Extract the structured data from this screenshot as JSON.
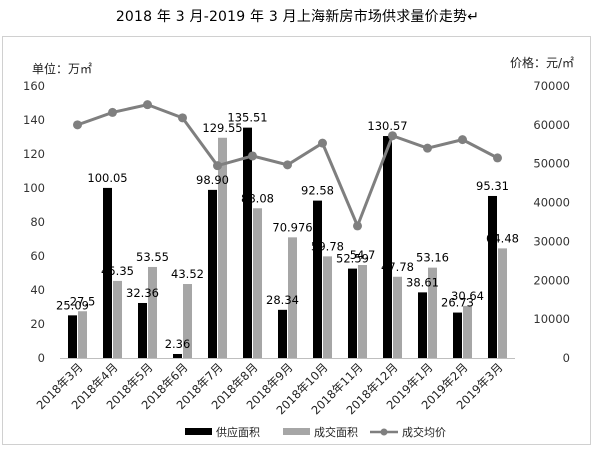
{
  "title": "2018 年 3 月-2019 年 3 月上海新房市场供求量价走势↵",
  "left_unit": "单位：万㎡",
  "right_unit": "价格：元/㎡",
  "legend": [
    "供应面积",
    "成交面积",
    "成交均价"
  ],
  "colors": {
    "supply": "#000000",
    "deal": "#a6a6a6",
    "price": "#7f7f7f"
  },
  "chart_data": {
    "type": "bar",
    "categories": [
      "2018年3月",
      "2018年4月",
      "2018年5月",
      "2018年6月",
      "2018年7月",
      "2018年8月",
      "2018年9月",
      "2018年10月",
      "2018年11月",
      "2018年12月",
      "2019年1月",
      "2019年2月",
      "2019年3月"
    ],
    "series": [
      {
        "name": "供应面积",
        "type": "bar",
        "axis": "left",
        "values": [
          25.09,
          100.05,
          32.36,
          2.36,
          98.9,
          135.51,
          28.34,
          92.58,
          52.59,
          130.57,
          38.61,
          26.73,
          95.31
        ],
        "labels": [
          "25.09",
          "100.05",
          "32.36",
          "2.36",
          "98.90",
          "135.51",
          "28.34",
          "92.58",
          "52.59",
          "130.57",
          "38.61",
          "26.73",
          "95.31"
        ]
      },
      {
        "name": "成交面积",
        "type": "bar",
        "axis": "left",
        "values": [
          27.5,
          45.35,
          53.55,
          43.52,
          129.55,
          88.08,
          70.976,
          59.78,
          54.7,
          47.78,
          53.16,
          30.64,
          64.48
        ],
        "labels": [
          "27.5",
          "45.35",
          "53.55",
          "43.52",
          "129.55",
          "88.08",
          "70.976",
          "59.78",
          "54.7",
          "47.78",
          "53.16",
          "30.64",
          "64.48"
        ]
      },
      {
        "name": "成交均价",
        "type": "line",
        "axis": "right",
        "values": [
          60000,
          63200,
          65200,
          61800,
          49500,
          52000,
          49700,
          55300,
          34000,
          57200,
          54000,
          56200,
          51500
        ]
      }
    ],
    "ylim_left": [
      0,
      160
    ],
    "yticks_left": [
      0,
      20,
      40,
      60,
      80,
      100,
      120,
      140,
      160
    ],
    "ylim_right": [
      0,
      70000
    ],
    "yticks_right": [
      0,
      10000,
      20000,
      30000,
      40000,
      50000,
      60000,
      70000
    ],
    "grid": false,
    "legend_position": "bottom"
  }
}
